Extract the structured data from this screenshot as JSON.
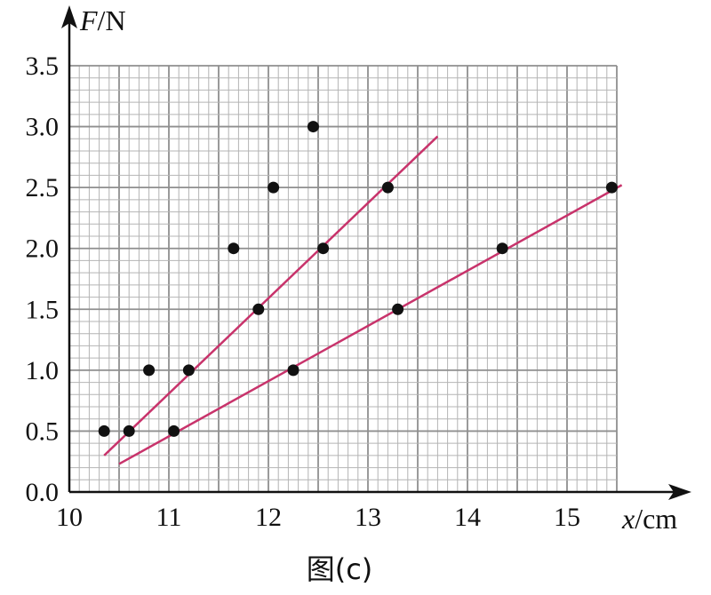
{
  "chart_data": {
    "type": "scatter",
    "title": "",
    "caption": "图(c)",
    "x_axis": {
      "var": "x",
      "unit": "/cm"
    },
    "y_axis": {
      "var": "F",
      "unit": "/N"
    },
    "xlim": [
      10,
      15.5
    ],
    "ylim": [
      0,
      3.5
    ],
    "x_ticks": [
      "10",
      "11",
      "12",
      "13",
      "14",
      "15"
    ],
    "y_ticks": [
      "0.0",
      "0.5",
      "1.0",
      "1.5",
      "2.0",
      "2.5",
      "3.0",
      "3.5"
    ],
    "grid": true,
    "series": [
      {
        "points": [
          [
            10.35,
            0.5
          ],
          [
            10.8,
            1.0
          ],
          [
            11.65,
            2.0
          ],
          [
            12.05,
            2.5
          ],
          [
            12.45,
            3.0
          ]
        ]
      },
      {
        "points": [
          [
            10.6,
            0.5
          ],
          [
            11.2,
            1.0
          ],
          [
            11.9,
            1.5
          ],
          [
            12.55,
            2.0
          ],
          [
            13.2,
            2.5
          ]
        ],
        "fit_line": [
          [
            10.35,
            0.3
          ],
          [
            13.7,
            2.92
          ]
        ],
        "color": "#c8336b"
      },
      {
        "points": [
          [
            11.05,
            0.5
          ],
          [
            12.25,
            1.0
          ],
          [
            13.3,
            1.5
          ],
          [
            14.35,
            2.0
          ],
          [
            15.45,
            2.5
          ]
        ],
        "fit_line": [
          [
            10.5,
            0.23
          ],
          [
            15.55,
            2.52
          ]
        ],
        "color": "#c8336b"
      }
    ]
  }
}
